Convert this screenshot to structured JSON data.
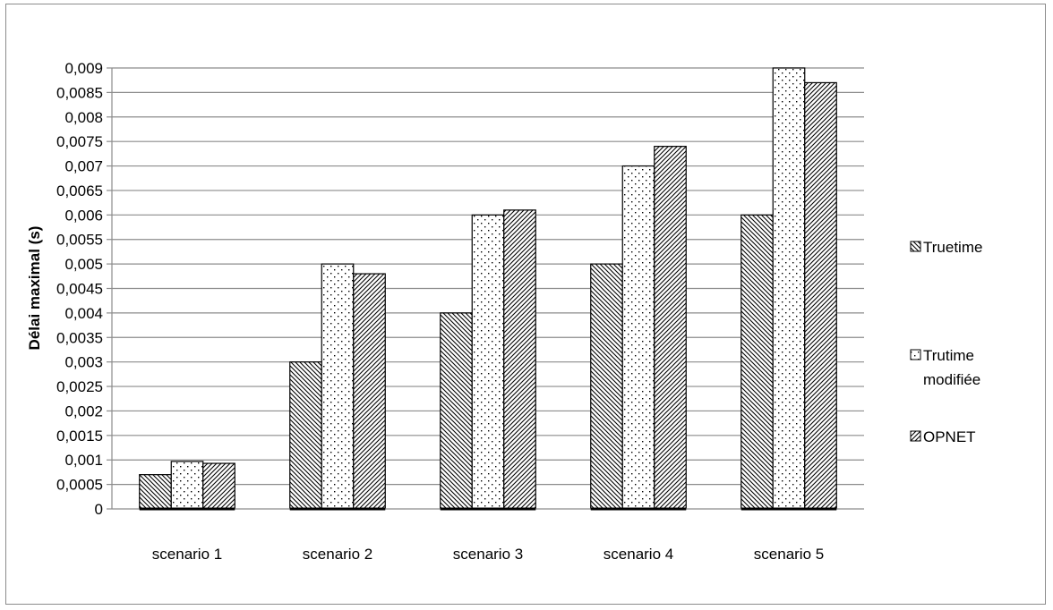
{
  "chart_data": {
    "type": "bar",
    "ylabel": "Délai maximal  (s)",
    "ylim": [
      0,
      0.009
    ],
    "ytick_step": 0.0005,
    "yticks": [
      "0",
      "0,0005",
      "0,001",
      "0,0015",
      "0,002",
      "0,0025",
      "0,003",
      "0,0035",
      "0,004",
      "0,0045",
      "0,005",
      "0,0055",
      "0,006",
      "0,0065",
      "0,007",
      "0,0075",
      "0,008",
      "0,0085",
      "0,009"
    ],
    "categories": [
      "scenario 1",
      "scenario 2",
      "scenario 3",
      "scenario 4",
      "scenario 5"
    ],
    "series": [
      {
        "name": "Truetime",
        "values": [
          0.0007,
          0.003,
          0.004,
          0.005,
          0.006
        ],
        "pattern": "diag-back"
      },
      {
        "name": "Trutime modifiée",
        "values": [
          0.00097,
          0.005,
          0.006,
          0.007,
          0.009
        ],
        "pattern": "dots"
      },
      {
        "name": "OPNET",
        "values": [
          0.00093,
          0.0048,
          0.0061,
          0.0074,
          0.0087
        ],
        "pattern": "diag-fwd"
      }
    ],
    "grid": true,
    "legend": "right",
    "colors": {
      "grid": "#8c8c8c",
      "bar_stroke": "#000000",
      "pattern": "#000000"
    }
  }
}
